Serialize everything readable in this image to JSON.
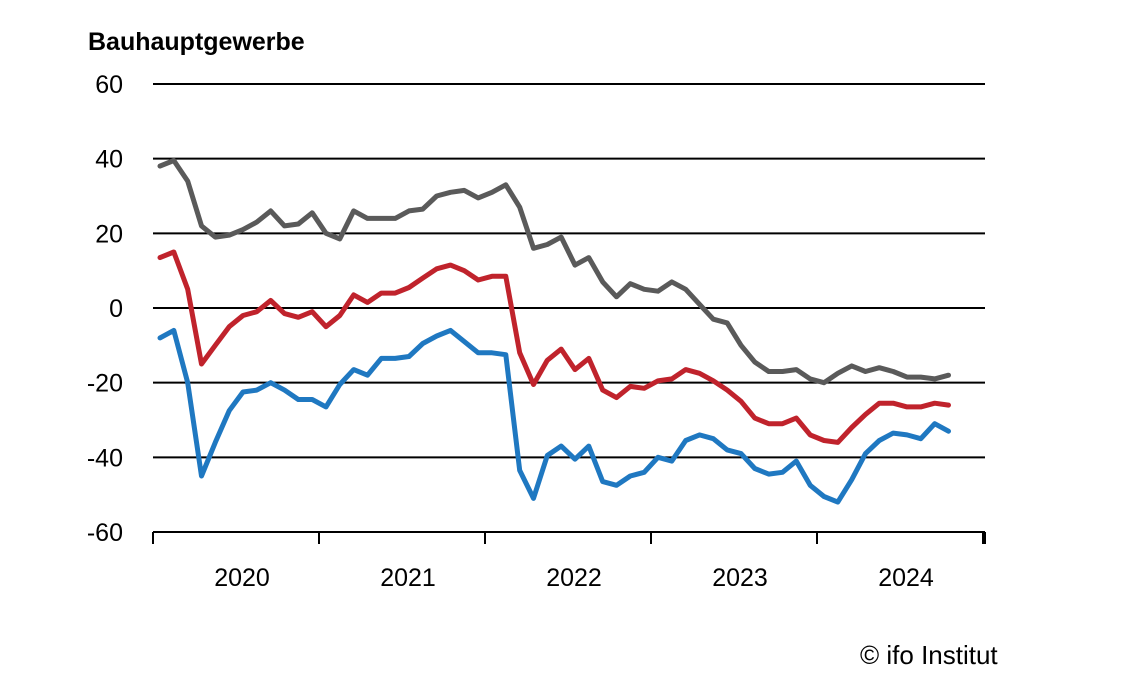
{
  "chart_data": {
    "type": "line",
    "title": "Bauhauptgewerbe",
    "xlabel": "",
    "ylabel": "",
    "ylim": [
      -60,
      60
    ],
    "yticks": [
      60,
      40,
      20,
      0,
      -20,
      -40,
      -60
    ],
    "ytick_labels": [
      "60",
      "40",
      "20",
      "0",
      "-20",
      "-40",
      "-60"
    ],
    "xticks": [
      "2020",
      "2021",
      "2022",
      "2023",
      "2024"
    ],
    "x_start": "2020-01",
    "grid": true,
    "legend": "none",
    "series": [
      {
        "color": "#5a5a5a",
        "values": [
          38,
          39.5,
          34,
          22,
          19,
          19.5,
          21,
          23,
          26,
          22,
          22.5,
          25.5,
          20,
          18.5,
          26,
          24,
          24,
          24,
          26,
          26.5,
          30,
          31,
          31.5,
          29.5,
          31,
          33,
          27,
          16,
          17,
          19,
          11.5,
          13.5,
          7,
          3,
          6.5,
          5,
          4.5,
          7,
          5,
          1,
          -3,
          -4,
          -10,
          -14.5,
          -17,
          -17,
          -16.5,
          -19,
          -20,
          -17.5,
          -15.5,
          -17,
          -16,
          -17,
          -18.5,
          -18.5,
          -19,
          -18
        ]
      },
      {
        "color": "#c0232c",
        "values": [
          13.5,
          15,
          5,
          -15,
          -10,
          -5,
          -2,
          -1,
          2,
          -1.5,
          -2.5,
          -1,
          -5,
          -2,
          3.5,
          1.5,
          4,
          4,
          5.5,
          8,
          10.5,
          11.5,
          10,
          7.5,
          8.5,
          8.5,
          -12,
          -20.5,
          -14,
          -11,
          -16.5,
          -13.5,
          -22,
          -24,
          -21,
          -21.5,
          -19.5,
          -19,
          -16.5,
          -17.5,
          -19.5,
          -22,
          -25,
          -29.5,
          -31,
          -31,
          -29.5,
          -34,
          -35.5,
          -36,
          -32,
          -28.5,
          -25.5,
          -25.5,
          -26.5,
          -26.5,
          -25.5,
          -26
        ]
      },
      {
        "color": "#1f78c1",
        "values": [
          -8,
          -6,
          -20,
          -45,
          -36,
          -27.5,
          -22.5,
          -22,
          -20,
          -22,
          -24.5,
          -24.5,
          -26.5,
          -20.5,
          -16.5,
          -18,
          -13.5,
          -13.5,
          -13,
          -9.5,
          -7.5,
          -6,
          -9,
          -12,
          -12,
          -12.5,
          -43.5,
          -51,
          -39.5,
          -37,
          -40.5,
          -37,
          -46.5,
          -47.5,
          -45,
          -44,
          -40,
          -41,
          -35.5,
          -34,
          -35,
          -38,
          -39,
          -43,
          -44.5,
          -44,
          -41,
          -47.5,
          -50.5,
          -52,
          -46,
          -39,
          -35.5,
          -33.5,
          -34,
          -35,
          -31,
          -33
        ]
      }
    ]
  },
  "footer": {
    "credit": "© ifo Institut"
  }
}
